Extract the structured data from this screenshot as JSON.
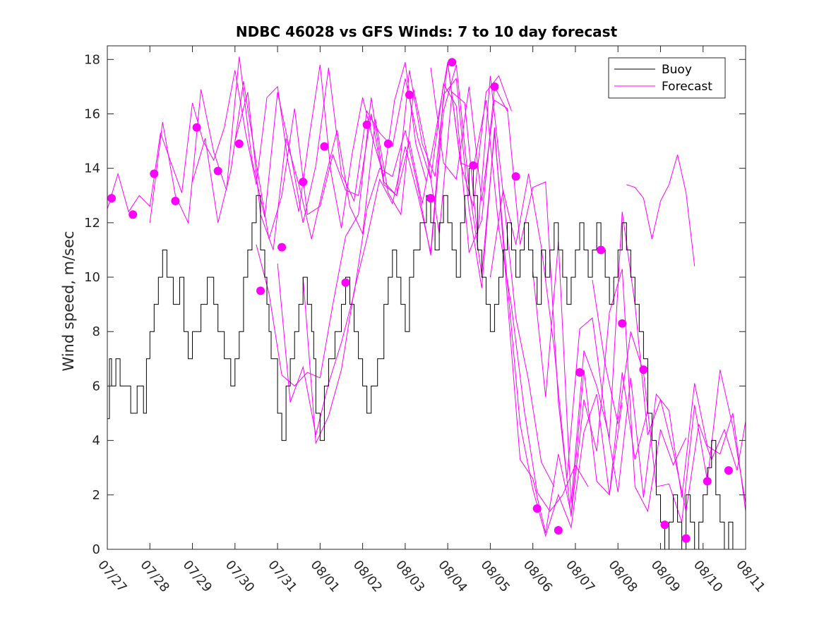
{
  "chart_data": {
    "type": "line",
    "title": "NDBC 46028 vs GFS Winds: 7 to 10 day forecast",
    "xlabel": "",
    "ylabel": "Wind speed, m/sec",
    "xlim": [
      0,
      15
    ],
    "ylim": [
      0,
      18.5
    ],
    "x_tick_labels": [
      "07/27",
      "07/28",
      "07/29",
      "07/30",
      "07/31",
      "08/01",
      "08/02",
      "08/03",
      "08/04",
      "08/05",
      "08/06",
      "08/07",
      "08/08",
      "08/09",
      "08/10",
      "08/11"
    ],
    "y_ticks": [
      0,
      2,
      4,
      6,
      8,
      10,
      12,
      14,
      16,
      18
    ],
    "grid": false,
    "legend": {
      "placement": "top-right",
      "entries": [
        "Buoy",
        "Forecast"
      ]
    },
    "colors": {
      "buoy": "#000000",
      "forecast": "#ff00ff"
    },
    "series": [
      {
        "name": "Buoy",
        "x": [
          0,
          0.05,
          0.1,
          0.2,
          0.3,
          0.45,
          0.55,
          0.7,
          0.85,
          0.92,
          1.0,
          1.1,
          1.2,
          1.3,
          1.4,
          1.55,
          1.7,
          1.8,
          1.9,
          2.0,
          2.1,
          2.2,
          2.35,
          2.5,
          2.6,
          2.75,
          2.9,
          3.0,
          3.1,
          3.2,
          3.3,
          3.4,
          3.5,
          3.6,
          3.7,
          3.75,
          3.8,
          3.85,
          4.0,
          4.1,
          4.2,
          4.3,
          4.4,
          4.5,
          4.6,
          4.7,
          4.8,
          4.85,
          4.9,
          5.0,
          5.1,
          5.2,
          5.35,
          5.5,
          5.6,
          5.7,
          5.8,
          5.9,
          6.0,
          6.1,
          6.2,
          6.35,
          6.5,
          6.6,
          6.7,
          6.8,
          6.9,
          7.0,
          7.1,
          7.2,
          7.35,
          7.5,
          7.6,
          7.7,
          7.8,
          7.9,
          8.0,
          8.1,
          8.2,
          8.3,
          8.4,
          8.5,
          8.6,
          8.7,
          8.8,
          8.9,
          9.0,
          9.1,
          9.2,
          9.3,
          9.4,
          9.5,
          9.6,
          9.7,
          9.8,
          9.9,
          10.0,
          10.1,
          10.2,
          10.3,
          10.4,
          10.5,
          10.6,
          10.7,
          10.8,
          10.9,
          11.0,
          11.1,
          11.2,
          11.3,
          11.4,
          11.5,
          11.6,
          11.7,
          11.8,
          11.9,
          12.0,
          12.1,
          12.2,
          12.3,
          12.4,
          12.5,
          12.6,
          12.7,
          12.8,
          12.9,
          13.0,
          13.1,
          13.2,
          13.3,
          13.4,
          13.5,
          13.6,
          13.7,
          13.8,
          13.9,
          14.0,
          14.1,
          14.2,
          14.3,
          14.4,
          14.5,
          14.6,
          14.7
        ],
        "y": [
          4.8,
          7,
          6,
          7,
          6,
          6,
          5,
          6,
          5,
          7,
          8,
          9,
          10,
          11,
          10,
          9,
          10,
          8,
          7,
          8,
          8,
          9,
          10,
          9,
          8,
          7,
          6,
          7,
          8,
          10,
          11,
          12,
          13,
          11,
          10,
          9,
          8,
          7,
          5,
          4,
          6,
          7,
          8,
          9,
          10,
          9,
          8,
          7,
          5,
          4,
          6,
          7,
          8,
          9,
          10,
          9,
          8,
          7,
          6,
          5,
          6,
          7,
          9,
          10,
          11,
          10,
          9,
          8,
          10,
          11,
          12,
          13,
          12,
          11,
          12,
          13,
          12,
          11,
          10,
          12,
          13,
          14,
          13,
          11,
          10,
          9,
          8,
          9,
          10,
          11,
          12,
          11,
          10,
          11,
          12,
          11,
          10,
          9,
          11,
          10,
          11,
          12,
          11,
          10,
          9,
          10,
          11,
          12,
          11,
          10,
          11,
          12,
          11,
          10,
          9,
          10,
          11,
          12,
          11,
          10,
          9,
          8,
          7,
          5,
          4,
          2,
          1,
          0,
          1,
          2,
          1,
          0,
          2,
          1,
          0,
          1,
          2,
          3,
          4,
          2,
          1,
          0,
          1,
          0
        ]
      },
      {
        "name": "Forecast",
        "markers": {
          "x": [
            0.1,
            0.6,
            1.1,
            1.6,
            2.1,
            2.6,
            3.1,
            3.6,
            4.1,
            4.6,
            5.1,
            5.6,
            6.1,
            6.6,
            7.1,
            7.6,
            8.1,
            8.6,
            9.1,
            9.6,
            10.1,
            10.6,
            11.1,
            11.6,
            12.1,
            12.6,
            13.1,
            13.6,
            14.1,
            14.6
          ],
          "y": [
            12.9,
            12.3,
            13.8,
            12.8,
            15.5,
            13.9,
            14.9,
            9.5,
            11.1,
            13.5,
            14.8,
            9.8,
            15.6,
            14.9,
            16.7,
            12.9,
            17.9,
            14.1,
            17.0,
            13.7,
            1.5,
            0.7,
            6.5,
            11.0,
            8.3,
            6.6,
            0.9,
            0.4,
            2.5,
            2.9
          ]
        },
        "runs": [
          {
            "x": [
              0.0,
              0.25,
              0.5,
              0.75,
              1.0,
              1.25,
              1.5,
              1.75,
              2.0,
              2.25,
              2.5,
              2.75,
              3.0,
              3.25,
              3.5,
              3.75,
              4.0,
              4.25,
              4.5,
              4.75,
              5.0,
              5.25,
              5.5,
              5.75,
              6.0,
              6.25,
              6.5,
              6.75,
              7.0,
              7.25,
              7.5
            ],
            "y": [
              12.5,
              13.8,
              12.4,
              13.0,
              12.6,
              15.3,
              14.2,
              13.1,
              16.4,
              15.0,
              14.3,
              15.5,
              17.6,
              15.3,
              13.4,
              16.6,
              17.0,
              14.2,
              12.4,
              15.2,
              17.8,
              13.9,
              11.8,
              14.5,
              16.6,
              15.0,
              13.7,
              16.5,
              17.9,
              14.9,
              13.5
            ]
          },
          {
            "x": [
              1.0,
              1.3,
              1.6,
              1.9,
              2.2,
              2.5,
              2.8,
              3.1,
              3.4,
              3.7,
              4.0,
              4.3,
              4.6,
              4.9,
              5.2,
              5.5,
              5.8,
              6.1,
              6.4,
              6.7,
              7.0,
              7.3,
              7.6,
              7.9,
              8.2,
              8.5,
              8.8,
              9.1,
              9.4
            ],
            "y": [
              12.0,
              15.7,
              13.0,
              12.0,
              16.9,
              14.6,
              13.2,
              18.1,
              14.3,
              12.2,
              16.8,
              14.6,
              12.0,
              14.1,
              17.7,
              13.8,
              12.8,
              16.1,
              15.3,
              14.8,
              17.3,
              15.1,
              13.6,
              17.1,
              16.3,
              10.9,
              12.1,
              17.0,
              16.1
            ]
          },
          {
            "x": [
              2.0,
              2.3,
              2.6,
              2.9,
              3.2,
              3.5,
              3.8,
              4.1,
              4.4,
              4.7,
              5.0,
              5.3,
              5.6,
              5.9,
              6.2,
              6.5,
              6.8,
              7.1,
              7.4,
              7.7,
              8.0,
              8.3,
              8.6,
              8.9,
              9.2,
              9.5
            ],
            "y": [
              13.5,
              15.1,
              12.0,
              13.9,
              17.2,
              14.2,
              11.4,
              13.0,
              16.2,
              12.3,
              12.6,
              14.5,
              13.2,
              13.0,
              16.0,
              13.4,
              13.0,
              17.6,
              14.9,
              13.7,
              17.9,
              14.2,
              12.6,
              16.8,
              17.4,
              16.1
            ]
          },
          {
            "x": [
              3.0,
              3.3,
              3.6,
              3.9,
              4.2,
              4.5,
              4.8,
              5.1,
              5.4,
              5.7,
              6.0,
              6.3,
              6.6,
              6.9,
              7.2,
              7.5,
              7.8,
              8.1,
              8.4,
              8.7,
              9.0,
              9.3,
              9.6,
              9.9,
              10.2,
              10.5
            ],
            "y": [
              15.0,
              16.8,
              12.3,
              11.0,
              15.1,
              13.4,
              11.4,
              13.5,
              15.4,
              12.6,
              11.6,
              15.8,
              13.1,
              12.3,
              16.9,
              14.6,
              11.6,
              16.8,
              16.4,
              11.5,
              17.4,
              13.1,
              8.5,
              6.2,
              3.2,
              2.3
            ]
          },
          {
            "x": [
              3.5,
              3.8,
              4.1,
              4.4,
              4.7,
              5.0,
              5.3,
              5.6,
              5.9,
              6.2,
              6.5,
              6.8,
              7.1,
              7.4,
              7.7,
              8.0,
              8.3,
              8.6,
              8.9,
              9.2,
              9.5,
              9.8,
              10.1,
              10.4,
              10.7,
              11.0,
              11.3
            ],
            "y": [
              11.2,
              9.4,
              6.4,
              6.0,
              6.5,
              6.3,
              9.0,
              11.5,
              12.3,
              16.6,
              13.5,
              13.0,
              15.0,
              12.7,
              15.2,
              17.9,
              14.2,
              14.0,
              16.5,
              11.8,
              8.9,
              5.1,
              2.1,
              1.4,
              2.0,
              3.1,
              2.3
            ]
          },
          {
            "x": [
              4.0,
              4.3,
              4.6,
              4.9,
              5.2,
              5.5,
              5.8,
              6.1,
              6.4,
              6.7,
              7.0,
              7.3,
              7.6,
              7.9,
              8.2,
              8.5,
              8.8,
              9.1,
              9.4,
              9.7,
              10.0,
              10.3,
              10.6,
              10.9,
              11.2,
              11.5,
              11.8,
              12.1
            ],
            "y": [
              10.5,
              5.4,
              6.7,
              4.2,
              6.1,
              7.6,
              9.4,
              12.5,
              14.0,
              13.7,
              15.4,
              13.3,
              10.8,
              16.1,
              17.8,
              13.3,
              10.1,
              15.3,
              9.8,
              4.6,
              2.2,
              0.5,
              2.0,
              0.8,
              4.3,
              5.7,
              2.0,
              5.4
            ]
          },
          {
            "x": [
              4.6,
              4.9,
              5.2,
              5.5,
              5.8,
              6.1,
              6.4,
              6.7,
              7.0,
              7.3,
              7.6,
              7.9,
              8.2,
              8.5,
              8.8,
              9.1,
              9.4,
              9.7,
              10.0,
              10.3,
              10.6,
              10.9,
              11.2,
              11.5,
              11.8,
              12.1,
              12.4,
              12.7
            ],
            "y": [
              10.0,
              3.9,
              4.9,
              6.6,
              9.5,
              11.4,
              13.6,
              12.7,
              14.8,
              13.0,
              10.9,
              16.7,
              17.3,
              12.5,
              9.6,
              15.5,
              9.2,
              3.3,
              2.6,
              0.6,
              3.5,
              1.3,
              6.6,
              2.5,
              2.0,
              6.5,
              3.3,
              5.1
            ]
          },
          {
            "x": [
              7.6,
              7.9,
              8.2,
              8.5,
              8.8,
              9.1,
              9.4,
              9.7,
              10.0,
              10.3,
              10.6,
              10.9,
              11.2,
              11.5,
              11.8,
              12.1,
              12.4,
              12.7,
              13.0,
              13.3,
              13.6
            ],
            "y": [
              17.7,
              14.2,
              13.6,
              17.0,
              12.8,
              16.5,
              16.2,
              11.2,
              13.3,
              13.5,
              5.4,
              1.2,
              5.5,
              3.6,
              8.7,
              10.3,
              2.3,
              1.4,
              4.4,
              3.1,
              4.1
            ]
          },
          {
            "x": [
              9.0,
              9.3,
              9.6,
              9.9,
              10.2,
              10.5,
              10.8,
              11.1,
              11.4,
              11.7,
              12.0,
              12.3,
              12.6,
              12.9,
              13.2,
              13.5,
              13.8,
              14.1,
              14.4,
              14.7,
              15.0
            ],
            "y": [
              10.0,
              13.2,
              11.2,
              13.8,
              11.1,
              7.4,
              2.6,
              8.1,
              8.5,
              4.9,
              2.1,
              6.3,
              1.9,
              5.7,
              5.1,
              1.9,
              6.1,
              3.8,
              3.5,
              5.0,
              1.4
            ]
          },
          {
            "x": [
              10.0,
              10.3,
              10.6,
              10.9,
              11.2,
              11.5,
              11.8,
              12.1,
              12.4,
              12.7,
              13.0,
              13.3,
              13.6,
              13.9,
              14.2,
              14.5,
              14.8,
              15.0
            ],
            "y": [
              10.2,
              5.6,
              11.3,
              1.7,
              7.3,
              6.0,
              4.1,
              12.4,
              9.0,
              4.2,
              5.5,
              3.6,
              1.4,
              4.6,
              3.3,
              4.4,
              2.9,
              4.7
            ]
          },
          {
            "x": [
              11.4,
              11.7,
              12.0,
              12.3,
              12.6,
              12.9,
              13.2,
              13.5,
              13.8,
              14.1,
              14.4,
              14.7,
              15.0
            ],
            "y": [
              9.9,
              6.8,
              4.6,
              8.0,
              6.5,
              2.3,
              2.4,
              1.0,
              5.3,
              2.5,
              6.6,
              4.5,
              1.7
            ]
          },
          {
            "x": [
              12.2,
              12.4,
              12.6,
              12.8,
              13.0,
              13.2,
              13.4,
              13.6,
              13.8
            ],
            "y": [
              13.4,
              13.3,
              12.9,
              11.4,
              12.8,
              13.4,
              14.5,
              13.1,
              10.4
            ]
          }
        ]
      }
    ]
  }
}
